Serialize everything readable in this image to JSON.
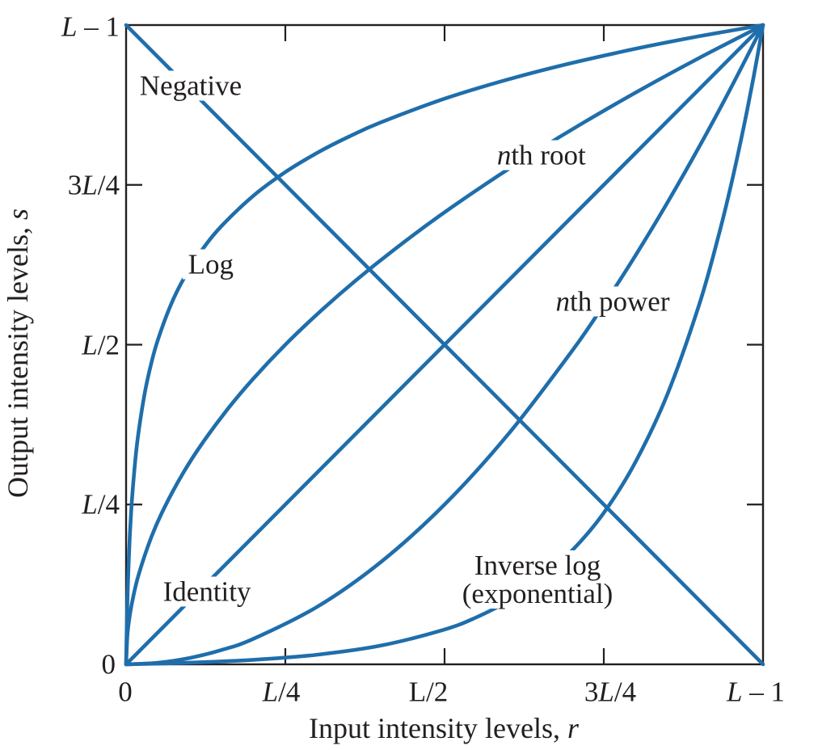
{
  "colors": {
    "curve": "#1f6eab",
    "axis": "#231f20",
    "text": "#231f20",
    "background": "#ffffff"
  },
  "chart_data": {
    "type": "line",
    "title": "",
    "xlabel": "Input intensity levels, r",
    "xlabel_main": "Input intensity levels, ",
    "xlabel_var": "r",
    "ylabel": "Output intensity levels, s",
    "ylabel_main": "Output intensity levels, ",
    "ylabel_var": "s",
    "x_range": [
      0,
      1
    ],
    "y_range": [
      0,
      1
    ],
    "grid": false,
    "legend": "labels-on-curves",
    "x_tick_labels": [
      "0",
      "L/4",
      "L/2",
      "3L/4",
      "L – 1"
    ],
    "y_tick_labels": [
      "0",
      "L/4",
      "L/2",
      "3L/4",
      "L – 1"
    ],
    "x_ticks": [
      {
        "pos": 0,
        "segments": [
          [
            "0",
            false
          ]
        ]
      },
      {
        "pos": 0.25,
        "segments": [
          [
            "L",
            true
          ],
          [
            "/4",
            false
          ]
        ]
      },
      {
        "pos": 0.5,
        "segments": [
          [
            "L/2",
            false
          ]
        ]
      },
      {
        "pos": 0.75,
        "segments": [
          [
            "3",
            false
          ],
          [
            "L",
            true
          ],
          [
            "/4",
            false
          ]
        ]
      },
      {
        "pos": 1,
        "segments": [
          [
            "L",
            true
          ],
          [
            " – 1",
            false
          ]
        ]
      }
    ],
    "y_ticks": [
      {
        "pos": 0,
        "segments": [
          [
            "0",
            false
          ]
        ]
      },
      {
        "pos": 0.25,
        "segments": [
          [
            "L",
            true
          ],
          [
            "/4",
            false
          ]
        ]
      },
      {
        "pos": 0.5,
        "segments": [
          [
            "L",
            true
          ],
          [
            "/2",
            false
          ]
        ]
      },
      {
        "pos": 0.75,
        "segments": [
          [
            "3",
            false
          ],
          [
            "L",
            true
          ],
          [
            "/4",
            false
          ]
        ]
      },
      {
        "pos": 1,
        "segments": [
          [
            "L",
            true
          ],
          [
            " – 1",
            false
          ]
        ]
      }
    ],
    "series": [
      {
        "id": "negative",
        "label": "Negative",
        "label_lines": [
          [
            [
              "Negative",
              false
            ]
          ]
        ],
        "label_pos": {
          "r": 0.1015,
          "s": 0.905
        },
        "points": [
          [
            0,
            1
          ],
          [
            1,
            0
          ]
        ]
      },
      {
        "id": "log",
        "label": "Log",
        "label_lines": [
          [
            [
              "Log",
              false
            ]
          ]
        ],
        "label_pos": {
          "r": 0.133,
          "s": 0.626
        },
        "points": [
          [
            0,
            0
          ],
          [
            0.001,
            0.0561
          ],
          [
            0.002,
            0.0981
          ],
          [
            0.004,
            0.1594
          ],
          [
            0.006,
            0.2042
          ],
          [
            0.008,
            0.2394
          ],
          [
            0.01,
            0.2685
          ],
          [
            0.015,
            0.3246
          ],
          [
            0.02,
            0.3666
          ],
          [
            0.03,
            0.4279
          ],
          [
            0.04,
            0.4727
          ],
          [
            0.05,
            0.5079
          ],
          [
            0.07,
            0.5618
          ],
          [
            0.09,
            0.6024
          ],
          [
            0.12,
            0.6493
          ],
          [
            0.15,
            0.6858
          ],
          [
            0.2,
            0.7331
          ],
          [
            0.25,
            0.77
          ],
          [
            0.3,
            0.8001
          ],
          [
            0.35,
            0.8256
          ],
          [
            0.4,
            0.8478
          ],
          [
            0.5,
            0.8848
          ],
          [
            0.6,
            0.915
          ],
          [
            0.7,
            0.9407
          ],
          [
            0.8,
            0.9629
          ],
          [
            0.9,
            0.9825
          ],
          [
            1,
            1
          ]
        ]
      },
      {
        "id": "nth-root",
        "label": "nth root",
        "label_lines": [
          [
            [
              "n",
              true
            ],
            [
              "th root",
              false
            ]
          ]
        ],
        "label_pos": {
          "r": 0.652,
          "s": 0.796
        },
        "points": [
          [
            0,
            0
          ],
          [
            0.002,
            0.0447
          ],
          [
            0.005,
            0.0707
          ],
          [
            0.01,
            0.1
          ],
          [
            0.02,
            0.1414
          ],
          [
            0.04,
            0.2
          ],
          [
            0.06,
            0.2449
          ],
          [
            0.09,
            0.3
          ],
          [
            0.12,
            0.3464
          ],
          [
            0.16,
            0.4
          ],
          [
            0.2,
            0.4472
          ],
          [
            0.25,
            0.5
          ],
          [
            0.3,
            0.5477
          ],
          [
            0.36,
            0.6
          ],
          [
            0.42,
            0.6481
          ],
          [
            0.49,
            0.7
          ],
          [
            0.56,
            0.7483
          ],
          [
            0.64,
            0.8
          ],
          [
            0.72,
            0.8485
          ],
          [
            0.81,
            0.9
          ],
          [
            0.9,
            0.9487
          ],
          [
            1,
            1
          ]
        ]
      },
      {
        "id": "identity",
        "label": "Identity",
        "label_lines": [
          [
            [
              "Identity",
              false
            ]
          ]
        ],
        "label_pos": {
          "r": 0.127,
          "s": 0.114
        },
        "points": [
          [
            0,
            0
          ],
          [
            1,
            1
          ]
        ]
      },
      {
        "id": "nth-power",
        "label": "nth power",
        "label_lines": [
          [
            [
              "n",
              true
            ],
            [
              "th power",
              false
            ]
          ]
        ],
        "label_pos": {
          "r": 0.764,
          "s": 0.568
        },
        "points": [
          [
            0,
            0
          ],
          [
            0.05,
            0.0025
          ],
          [
            0.1,
            0.01
          ],
          [
            0.15,
            0.0225
          ],
          [
            0.2,
            0.04
          ],
          [
            0.3,
            0.09
          ],
          [
            0.4,
            0.16
          ],
          [
            0.5,
            0.25
          ],
          [
            0.6,
            0.36
          ],
          [
            0.7,
            0.49
          ],
          [
            0.75,
            0.5625
          ],
          [
            0.8,
            0.64
          ],
          [
            0.85,
            0.7225
          ],
          [
            0.9,
            0.81
          ],
          [
            0.95,
            0.9025
          ],
          [
            1,
            1
          ]
        ]
      },
      {
        "id": "inverse-log",
        "label": "Inverse log (exponential)",
        "label_lines": [
          [
            [
              "Inverse log",
              false
            ]
          ],
          [
            [
              "(exponential)",
              false
            ]
          ]
        ],
        "label_pos": {
          "r": 0.646,
          "s": 0.133
        },
        "points": [
          [
            0,
            0
          ],
          [
            0.1,
            0.0026
          ],
          [
            0.2,
            0.0071
          ],
          [
            0.3,
            0.0151
          ],
          [
            0.4,
            0.0293
          ],
          [
            0.5,
            0.0545
          ],
          [
            0.55,
            0.0736
          ],
          [
            0.6,
            0.099
          ],
          [
            0.65,
            0.1331
          ],
          [
            0.7,
            0.1777
          ],
          [
            0.75,
            0.2369
          ],
          [
            0.8,
            0.317
          ],
          [
            0.85,
            0.4228
          ],
          [
            0.9,
            0.5635
          ],
          [
            0.93,
            0.6697
          ],
          [
            0.95,
            0.7507
          ],
          [
            0.97,
            0.8423
          ],
          [
            0.985,
            0.918
          ],
          [
            1,
            1
          ]
        ]
      }
    ]
  }
}
